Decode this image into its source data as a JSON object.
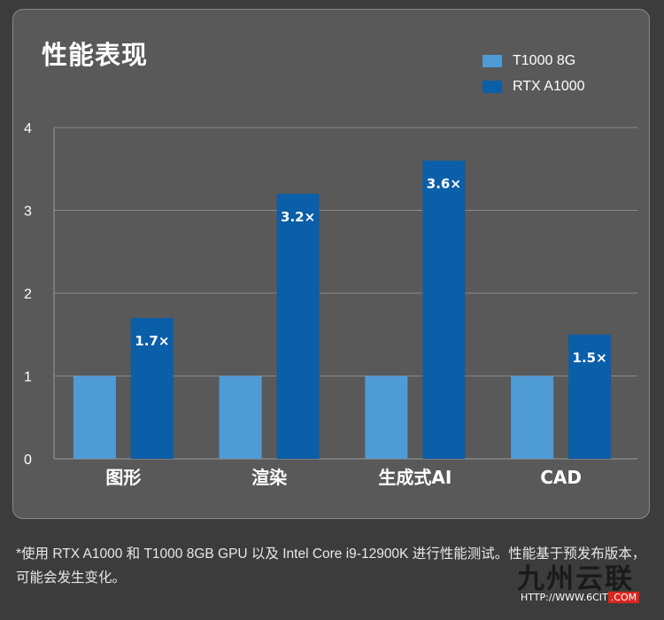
{
  "title": "性能表现",
  "legend": [
    {
      "label": "T1000 8G",
      "color": "#4f9bd6"
    },
    {
      "label": "RTX A1000",
      "color": "#0b5ea8"
    }
  ],
  "chart_data": {
    "type": "bar",
    "title": "性能表现",
    "categories": [
      "图形",
      "渲染",
      "生成式AI",
      "CAD"
    ],
    "series": [
      {
        "name": "T1000 8G",
        "color": "#4f9bd6",
        "values": [
          1,
          1,
          1,
          1
        ]
      },
      {
        "name": "RTX A1000",
        "color": "#0b5ea8",
        "values": [
          1.7,
          3.2,
          3.6,
          1.5
        ],
        "labels": [
          "1.7×",
          "3.2×",
          "3.6×",
          "1.5×"
        ]
      }
    ],
    "yticks": [
      "0",
      "1",
      "2",
      "3",
      "4"
    ],
    "ylim": [
      0,
      4
    ],
    "grid": true,
    "legend_position": "top-right",
    "xlabel": "",
    "ylabel": ""
  },
  "footnote": "*使用 RTX A1000 和 T1000 8GB GPU 以及 Intel Core i9-12900K 进行性能测试。性能基于预发布版本，可能会发生变化。",
  "watermark": {
    "name": "九州云联",
    "url_prefix": "HTTP://WWW.6CIT",
    "url_suffix": ".COM"
  }
}
